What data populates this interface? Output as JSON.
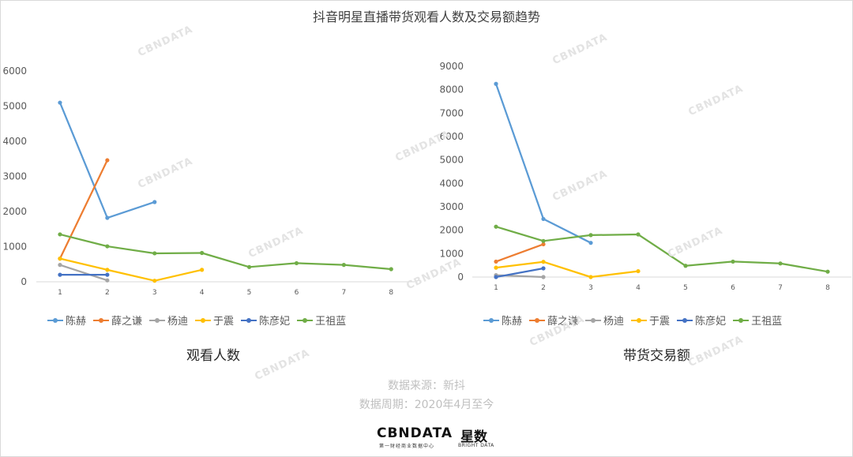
{
  "title": "抖音明星直播带货观看人数及交易额趋势",
  "source_line": "数据来源：新抖",
  "period_line": "数据周期：2020年4月至今",
  "brand": {
    "cbn": "CBNDATA",
    "cbn_sub": "第一财经商业数据中心",
    "bright": "星数",
    "bright_sub": "BRIGHT DATA",
    "watermark": "CBNDATA"
  },
  "chart_data": [
    {
      "type": "line",
      "subtitle": "观看人数",
      "x": [
        1,
        2,
        3,
        4,
        5,
        6,
        7,
        8
      ],
      "ylim": [
        0,
        6000
      ],
      "yticks": [
        0,
        1000,
        2000,
        3000,
        4000,
        5000,
        6000
      ],
      "series": [
        {
          "name": "陈赫",
          "color": "#5b9bd5",
          "values": [
            5100,
            1820,
            2270,
            null,
            null,
            null,
            null,
            null
          ]
        },
        {
          "name": "薛之谦",
          "color": "#ed7d31",
          "values": [
            660,
            3460,
            null,
            null,
            null,
            null,
            null,
            null
          ]
        },
        {
          "name": "杨迪",
          "color": "#a5a5a5",
          "values": [
            480,
            40,
            null,
            null,
            null,
            null,
            null,
            null
          ]
        },
        {
          "name": "于震",
          "color": "#ffc000",
          "values": [
            660,
            340,
            30,
            340,
            null,
            null,
            null,
            null
          ]
        },
        {
          "name": "陈彦妃",
          "color": "#4472c4",
          "values": [
            200,
            200,
            null,
            null,
            null,
            null,
            null,
            null
          ]
        },
        {
          "name": "王祖蓝",
          "color": "#70ad47",
          "values": [
            1350,
            1010,
            810,
            820,
            420,
            530,
            480,
            360
          ]
        }
      ]
    },
    {
      "type": "line",
      "subtitle": "带货交易额",
      "x": [
        1,
        2,
        3,
        4,
        5,
        6,
        7,
        8
      ],
      "ylim": [
        0,
        9000
      ],
      "yticks": [
        0,
        1000,
        2000,
        3000,
        4000,
        5000,
        6000,
        7000,
        8000,
        9000
      ],
      "series": [
        {
          "name": "陈赫",
          "color": "#5b9bd5",
          "values": [
            8250,
            2480,
            1460,
            null,
            null,
            null,
            null,
            null
          ]
        },
        {
          "name": "薛之谦",
          "color": "#ed7d31",
          "values": [
            660,
            1400,
            null,
            null,
            null,
            null,
            null,
            null
          ]
        },
        {
          "name": "杨迪",
          "color": "#a5a5a5",
          "values": [
            80,
            0,
            null,
            null,
            null,
            null,
            null,
            null
          ]
        },
        {
          "name": "于震",
          "color": "#ffc000",
          "values": [
            400,
            650,
            0,
            250,
            null,
            null,
            null,
            null
          ]
        },
        {
          "name": "陈彦妃",
          "color": "#4472c4",
          "values": [
            0,
            370,
            null,
            null,
            null,
            null,
            null,
            null
          ]
        },
        {
          "name": "王祖蓝",
          "color": "#70ad47",
          "values": [
            2150,
            1540,
            1790,
            1820,
            480,
            660,
            580,
            230
          ]
        }
      ]
    }
  ]
}
